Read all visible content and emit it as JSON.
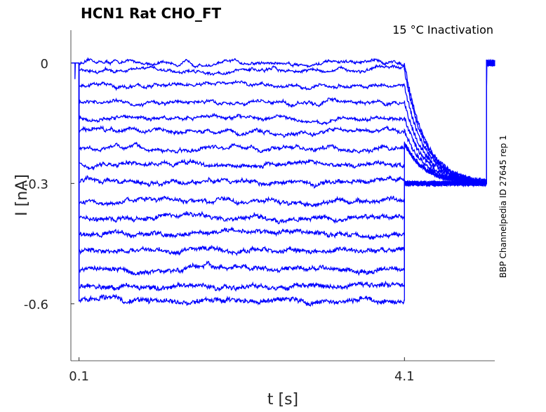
{
  "chart_data": {
    "type": "line",
    "title": "HCN1  Rat  CHO_FT",
    "subtitle": "15 °C  Inactivation",
    "side_label": "BBP Channelpedia ID 27645 rep 1",
    "xlabel": "t [s]",
    "ylabel": "I [nA]",
    "xlim": [
      0,
      5.21
    ],
    "ylim": [
      -0.742,
      0.082
    ],
    "xticks": [
      {
        "value": 0.1,
        "label": "0.1"
      },
      {
        "value": 4.1,
        "label": "4.1"
      }
    ],
    "yticks": [
      {
        "value": 0,
        "label": "0"
      },
      {
        "value": -0.3,
        "label": "-0.3"
      },
      {
        "value": -0.6,
        "label": "-0.6"
      }
    ],
    "grid": false,
    "line_color": "#0000ff",
    "step_start": 0.1,
    "step_end": 4.1,
    "tail_level": -0.3,
    "tail_end": 5.11,
    "trace_end": 5.21,
    "step_levels": [
      0,
      -0.018,
      -0.057,
      -0.098,
      -0.136,
      -0.17,
      -0.213,
      -0.25,
      -0.294,
      -0.345,
      -0.385,
      -0.425,
      -0.467,
      -0.513,
      -0.556,
      -0.591
    ]
  }
}
